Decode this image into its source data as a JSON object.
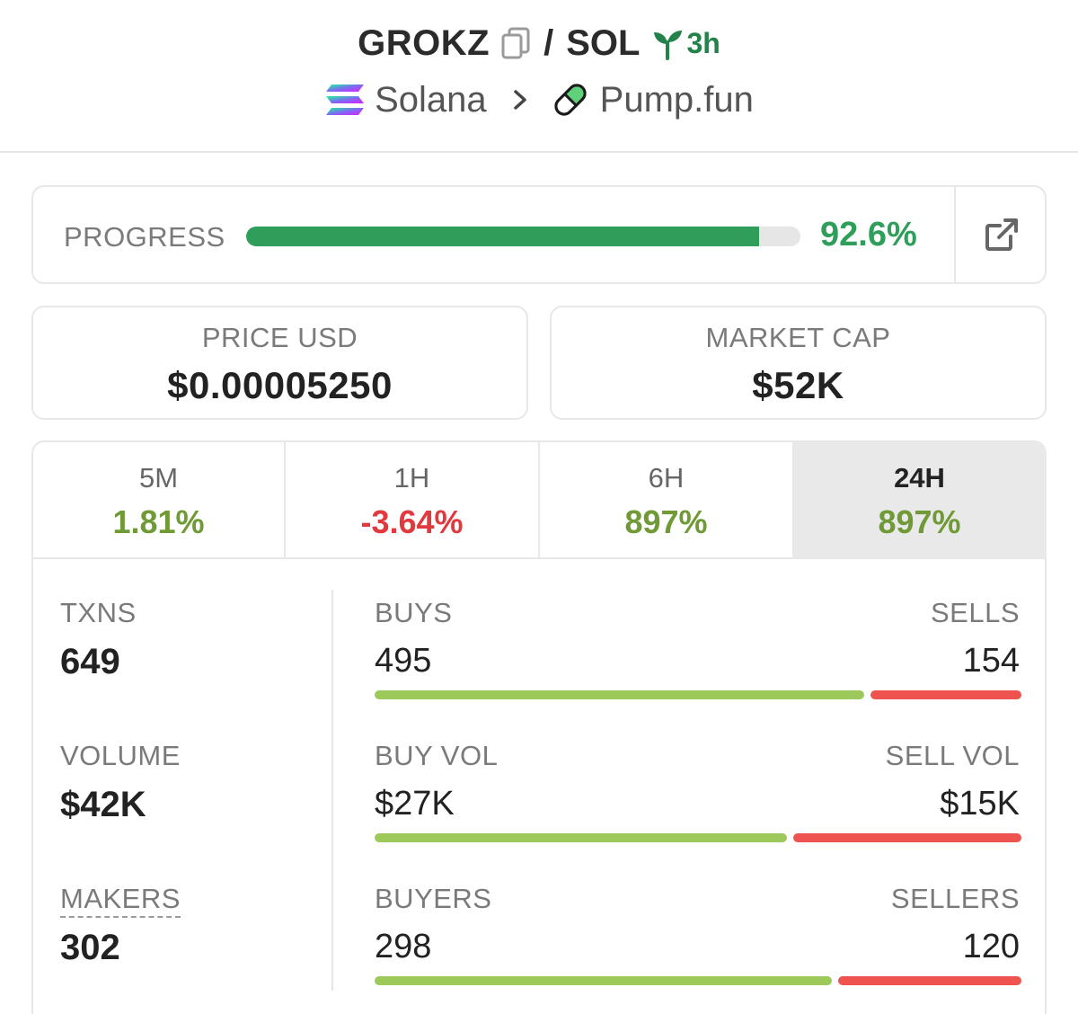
{
  "header": {
    "token": "GROKZ",
    "separator": "/",
    "quote": "SOL",
    "age": "3h",
    "chain": "Solana",
    "dex": "Pump.fun",
    "icons": [
      "copy-icon",
      "sprout-icon",
      "solana-logo-icon",
      "chevron-right-icon",
      "pill-icon"
    ]
  },
  "progress": {
    "label": "PROGRESS",
    "value_text": "92.6%",
    "fraction": 0.926,
    "color": "#2f9e5a",
    "action_icon": "external-link-icon"
  },
  "price": {
    "label": "PRICE USD",
    "value": "$0.00005250"
  },
  "market_cap": {
    "label": "MARKET CAP",
    "value": "$52K"
  },
  "tabs": [
    {
      "label": "5M",
      "value": "1.81%",
      "trend": "pos",
      "active": false
    },
    {
      "label": "1H",
      "value": "-3.64%",
      "trend": "neg",
      "active": false
    },
    {
      "label": "6H",
      "value": "897%",
      "trend": "pos",
      "active": false
    },
    {
      "label": "24H",
      "value": "897%",
      "trend": "pos",
      "active": true
    }
  ],
  "metrics": {
    "txns": {
      "label": "TXNS",
      "value": "649"
    },
    "volume": {
      "label": "VOLUME",
      "value": "$42K"
    },
    "makers": {
      "label": "MAKERS",
      "value": "302"
    }
  },
  "splits": {
    "txns": {
      "left_label": "BUYS",
      "left_value": "495",
      "right_label": "SELLS",
      "right_value": "154",
      "left_share": 0.763
    },
    "volume": {
      "left_label": "BUY VOL",
      "left_value": "$27K",
      "right_label": "SELL VOL",
      "right_value": "$15K",
      "left_share": 0.643
    },
    "makers": {
      "left_label": "BUYERS",
      "left_value": "298",
      "right_label": "SELLERS",
      "right_value": "120",
      "left_share": 0.713
    }
  },
  "colors": {
    "buy": "#9dc85a",
    "sell": "#ef5350",
    "positive": "#6f9a35",
    "negative": "#e0393e"
  }
}
